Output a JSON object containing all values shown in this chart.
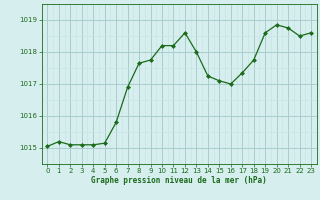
{
  "x": [
    0,
    1,
    2,
    3,
    4,
    5,
    6,
    7,
    8,
    9,
    10,
    11,
    12,
    13,
    14,
    15,
    16,
    17,
    18,
    19,
    20,
    21,
    22,
    23
  ],
  "y": [
    1015.05,
    1015.2,
    1015.1,
    1015.1,
    1015.1,
    1015.15,
    1015.8,
    1016.9,
    1017.65,
    1017.75,
    1018.2,
    1018.2,
    1018.6,
    1018.0,
    1017.25,
    1017.1,
    1017.0,
    1017.35,
    1017.75,
    1018.6,
    1018.85,
    1018.75,
    1018.5,
    1018.6
  ],
  "line_color": "#1a6b1a",
  "marker_color": "#1a6b1a",
  "bg_color": "#d6eeee",
  "grid_color_major": "#aacccc",
  "grid_color_minor": "#c8e4e4",
  "xlabel": "Graphe pression niveau de la mer (hPa)",
  "xlabel_color": "#1a6b1a",
  "tick_color": "#1a6b1a",
  "ylim": [
    1014.5,
    1019.5
  ],
  "yticks": [
    1015,
    1016,
    1017,
    1018,
    1019
  ],
  "xlim": [
    -0.5,
    23.5
  ],
  "xticks": [
    0,
    1,
    2,
    3,
    4,
    5,
    6,
    7,
    8,
    9,
    10,
    11,
    12,
    13,
    14,
    15,
    16,
    17,
    18,
    19,
    20,
    21,
    22,
    23
  ]
}
